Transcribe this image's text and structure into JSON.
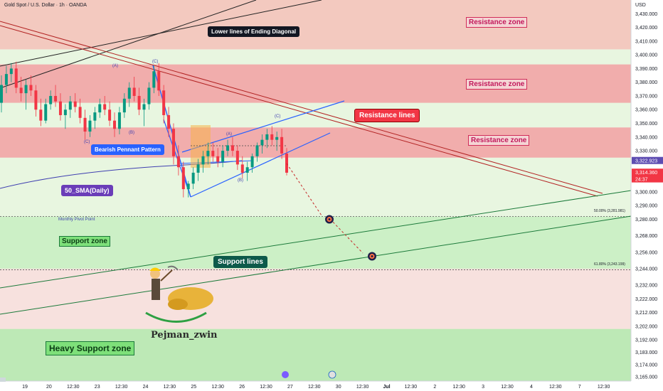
{
  "header": {
    "title": "Gold Spot / U.S. Dollar · 1h · OANDA",
    "currency": "USD"
  },
  "colors": {
    "resistance_fill": "#f2c6bd",
    "resistance_fill_mid": "#f0a9a9",
    "support_fill": "#c9efc4",
    "heavy_support_fill": "#b9e8b3",
    "pale_green": "#e8f6e0",
    "pale_pink": "#f7e1de",
    "bull": "#089981",
    "bear": "#f23645",
    "sma": "#3f3fb0",
    "wedge": "#2962ff",
    "resist_line": "#b22222",
    "support_line": "#1b7a3a",
    "price_current": "#f23645",
    "price_marker": "#5e4db2"
  },
  "chart_data": {
    "type": "candlestick",
    "title": "Gold Spot / U.S. Dollar · 1h · OANDA",
    "ylim": [
      3162,
      3440
    ],
    "y_ticks": [
      3430,
      3420,
      3410,
      3400,
      3390,
      3380,
      3370,
      3360,
      3350,
      3340,
      3330,
      3300,
      3290,
      3280,
      3268,
      3256,
      3244,
      3232,
      3222,
      3212,
      3202,
      3192,
      3183,
      3174,
      3165
    ],
    "y_tick_labels": [
      "3,430.000",
      "3,420.000",
      "3,410.000",
      "3,400.000",
      "3,390.000",
      "3,380.000",
      "3,370.000",
      "3,360.000",
      "3,350.000",
      "3,340.000",
      "3,330.000",
      "3,300.000",
      "3,290.000",
      "3,280.000",
      "3,268.000",
      "3,256.000",
      "3,244.000",
      "3,232.000",
      "3,222.000",
      "3,212.000",
      "3,202.000",
      "3,192.000",
      "3,183.000",
      "3,174.000",
      "3,165.000"
    ],
    "x_tick_labels": [
      "19",
      "20",
      "12:30",
      "23",
      "12:30",
      "24",
      "12:30",
      "25",
      "12:30",
      "26",
      "12:30",
      "27",
      "12:30",
      "30",
      "12:30",
      "Jul",
      "12:30",
      "2",
      "12:30",
      "3",
      "12:30",
      "4",
      "12:30",
      "7",
      "12:30"
    ],
    "x_tick_bold": [
      false,
      false,
      false,
      false,
      false,
      false,
      false,
      false,
      false,
      false,
      false,
      false,
      false,
      false,
      false,
      true,
      false,
      false,
      false,
      false,
      false,
      false,
      false,
      false,
      false
    ],
    "price_labels": [
      {
        "text": "3,322.923",
        "value": 3322.923,
        "color": "#5e4db2"
      },
      {
        "text": "3,314.360",
        "value": 3314.36,
        "color": "#f23645"
      },
      {
        "text": "24:37",
        "value": 3309.5,
        "color": "#f23645"
      }
    ],
    "zones": [
      {
        "name": "Resistance zone",
        "from": 3404,
        "to": 3440
      },
      {
        "name": "Resistance zone",
        "from": 3365,
        "to": 3393
      },
      {
        "name": "Resistance zone",
        "from": 3325,
        "to": 3347
      },
      {
        "name": "Support zone",
        "from": 3244,
        "to": 3282
      },
      {
        "name": "Heavy Support zone",
        "from": 3162,
        "to": 3200
      }
    ],
    "levels": [
      {
        "label": "Monthly Pivot Point",
        "value": 3282
      },
      {
        "label": "50.00% (3,281.981)",
        "value": 3281.981
      },
      {
        "label": "61.80% (3,243.199)",
        "value": 3243.199
      }
    ],
    "targets": [
      3280,
      3253
    ],
    "candles": [
      [
        3365,
        3385,
        3358,
        3378
      ],
      [
        3378,
        3392,
        3372,
        3386
      ],
      [
        3386,
        3394,
        3380,
        3390
      ],
      [
        3390,
        3395,
        3372,
        3376
      ],
      [
        3376,
        3384,
        3366,
        3372
      ],
      [
        3372,
        3382,
        3360,
        3378
      ],
      [
        3378,
        3385,
        3370,
        3374
      ],
      [
        3374,
        3378,
        3355,
        3360
      ],
      [
        3360,
        3368,
        3348,
        3352
      ],
      [
        3352,
        3368,
        3350,
        3364
      ],
      [
        3364,
        3374,
        3360,
        3370
      ],
      [
        3370,
        3378,
        3362,
        3366
      ],
      [
        3366,
        3372,
        3352,
        3356
      ],
      [
        3356,
        3364,
        3346,
        3360
      ],
      [
        3360,
        3370,
        3354,
        3366
      ],
      [
        3366,
        3372,
        3358,
        3362
      ],
      [
        3362,
        3368,
        3350,
        3354
      ],
      [
        3354,
        3360,
        3338,
        3344
      ],
      [
        3344,
        3356,
        3340,
        3352
      ],
      [
        3352,
        3362,
        3346,
        3358
      ],
      [
        3358,
        3368,
        3354,
        3364
      ],
      [
        3364,
        3370,
        3356,
        3360
      ],
      [
        3360,
        3366,
        3348,
        3352
      ],
      [
        3352,
        3358,
        3340,
        3346
      ],
      [
        3346,
        3362,
        3342,
        3358
      ],
      [
        3358,
        3372,
        3354,
        3368
      ],
      [
        3368,
        3380,
        3362,
        3376
      ],
      [
        3376,
        3384,
        3366,
        3370
      ],
      [
        3370,
        3376,
        3356,
        3360
      ],
      [
        3360,
        3368,
        3348,
        3364
      ],
      [
        3364,
        3380,
        3360,
        3376
      ],
      [
        3376,
        3392,
        3372,
        3388
      ],
      [
        3388,
        3394,
        3370,
        3374
      ],
      [
        3374,
        3378,
        3350,
        3356
      ],
      [
        3356,
        3362,
        3340,
        3346
      ],
      [
        3346,
        3350,
        3320,
        3326
      ],
      [
        3326,
        3334,
        3312,
        3318
      ],
      [
        3318,
        3322,
        3296,
        3302
      ],
      [
        3302,
        3308,
        3296,
        3306
      ],
      [
        3306,
        3318,
        3302,
        3314
      ],
      [
        3314,
        3324,
        3308,
        3320
      ],
      [
        3320,
        3330,
        3314,
        3326
      ],
      [
        3326,
        3336,
        3320,
        3330
      ],
      [
        3330,
        3336,
        3322,
        3326
      ],
      [
        3326,
        3332,
        3318,
        3322
      ],
      [
        3322,
        3334,
        3318,
        3330
      ],
      [
        3330,
        3338,
        3326,
        3334
      ],
      [
        3334,
        3340,
        3326,
        3330
      ],
      [
        3330,
        3334,
        3316,
        3320
      ],
      [
        3320,
        3326,
        3310,
        3314
      ],
      [
        3314,
        3322,
        3308,
        3318
      ],
      [
        3318,
        3328,
        3314,
        3326
      ],
      [
        3326,
        3336,
        3322,
        3334
      ],
      [
        3334,
        3342,
        3328,
        3338
      ],
      [
        3338,
        3346,
        3332,
        3342
      ],
      [
        3342,
        3348,
        3334,
        3338
      ],
      [
        3338,
        3344,
        3330,
        3340
      ],
      [
        3340,
        3346,
        3324,
        3328
      ],
      [
        3328,
        3332,
        3312,
        3314
      ]
    ],
    "annotations": [
      "Lower lines of Ending Diagonal",
      "Resistance lines",
      "Bearish Pennant Pattern",
      "50_SMA(Daily)",
      "Support lines"
    ],
    "wave_labels": [
      "(A)",
      "(B)",
      "(C)",
      "(C)",
      "(A)",
      "(B)",
      "(C)"
    ],
    "signature": "Pejman_zwin"
  }
}
